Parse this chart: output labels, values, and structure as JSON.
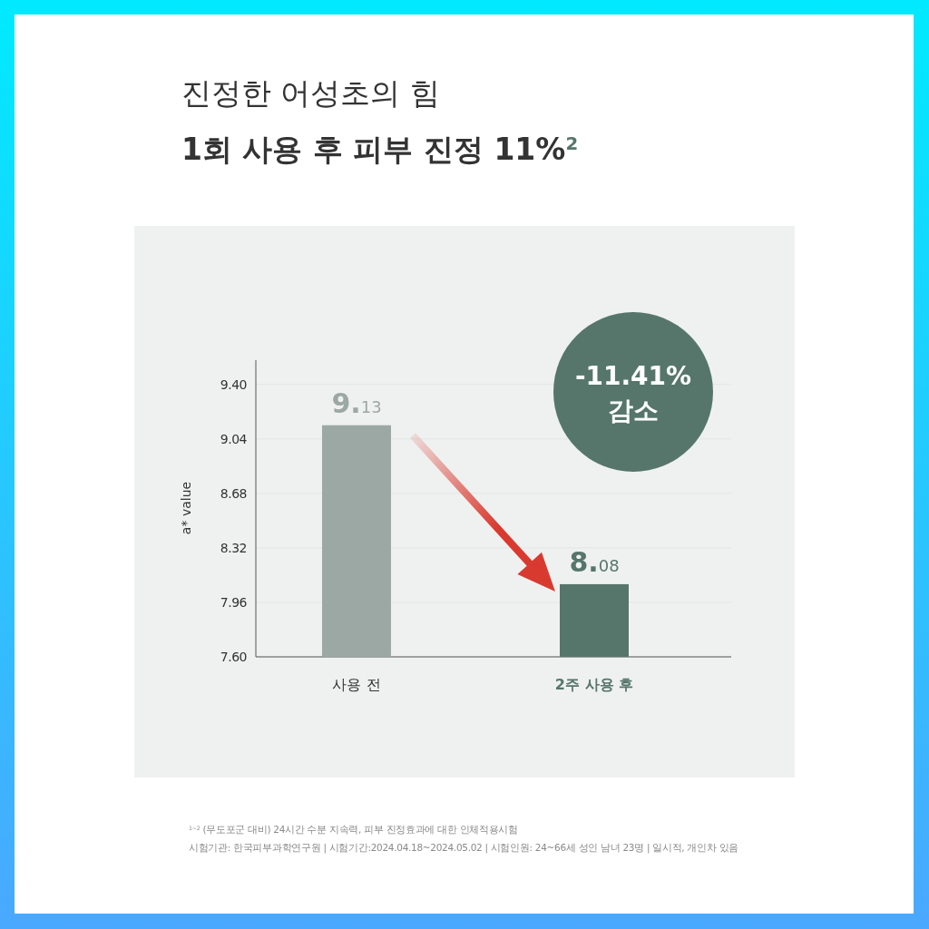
{
  "chart_data": {
    "type": "bar",
    "title": "진정한 어성초의 힘",
    "subtitle": "1회 사용 후 피부 진정 11%$^{2}$",
    "ylabel": "a* value",
    "categories": [
      "사용 전",
      "2주 사용 후"
    ],
    "values": [
      9.13,
      8.08
    ],
    "colors": [
      "#9ca8a3",
      "#56766b"
    ],
    "data_labels": true,
    "ylim": [
      7.6,
      9.56
    ],
    "yticks": [
      {
        "value": 7.6,
        "label": "7.60"
      },
      {
        "value": 7.96,
        "label": "7.96"
      },
      {
        "value": 8.32,
        "label": "8.32"
      },
      {
        "value": 8.68,
        "label": "8.68"
      },
      {
        "value": 9.04,
        "label": "9.04"
      },
      {
        "value": 9.4,
        "label": "9.40"
      }
    ],
    "grid": "y",
    "annotations": [
      "-11.41% 감소",
      "$^{1~2}$ (무도포군 대비) 24시간 수분 지속력, 피부 진정효과에 대한 인체적용시험",
      "시험기관: 한국피부과학연구원 | 시험기간:2024.04.18~2024.05.02 | 시험인원: 24~66세 성인 남녀 23명 | 일시적, 개인차 있음"
    ]
  }
}
